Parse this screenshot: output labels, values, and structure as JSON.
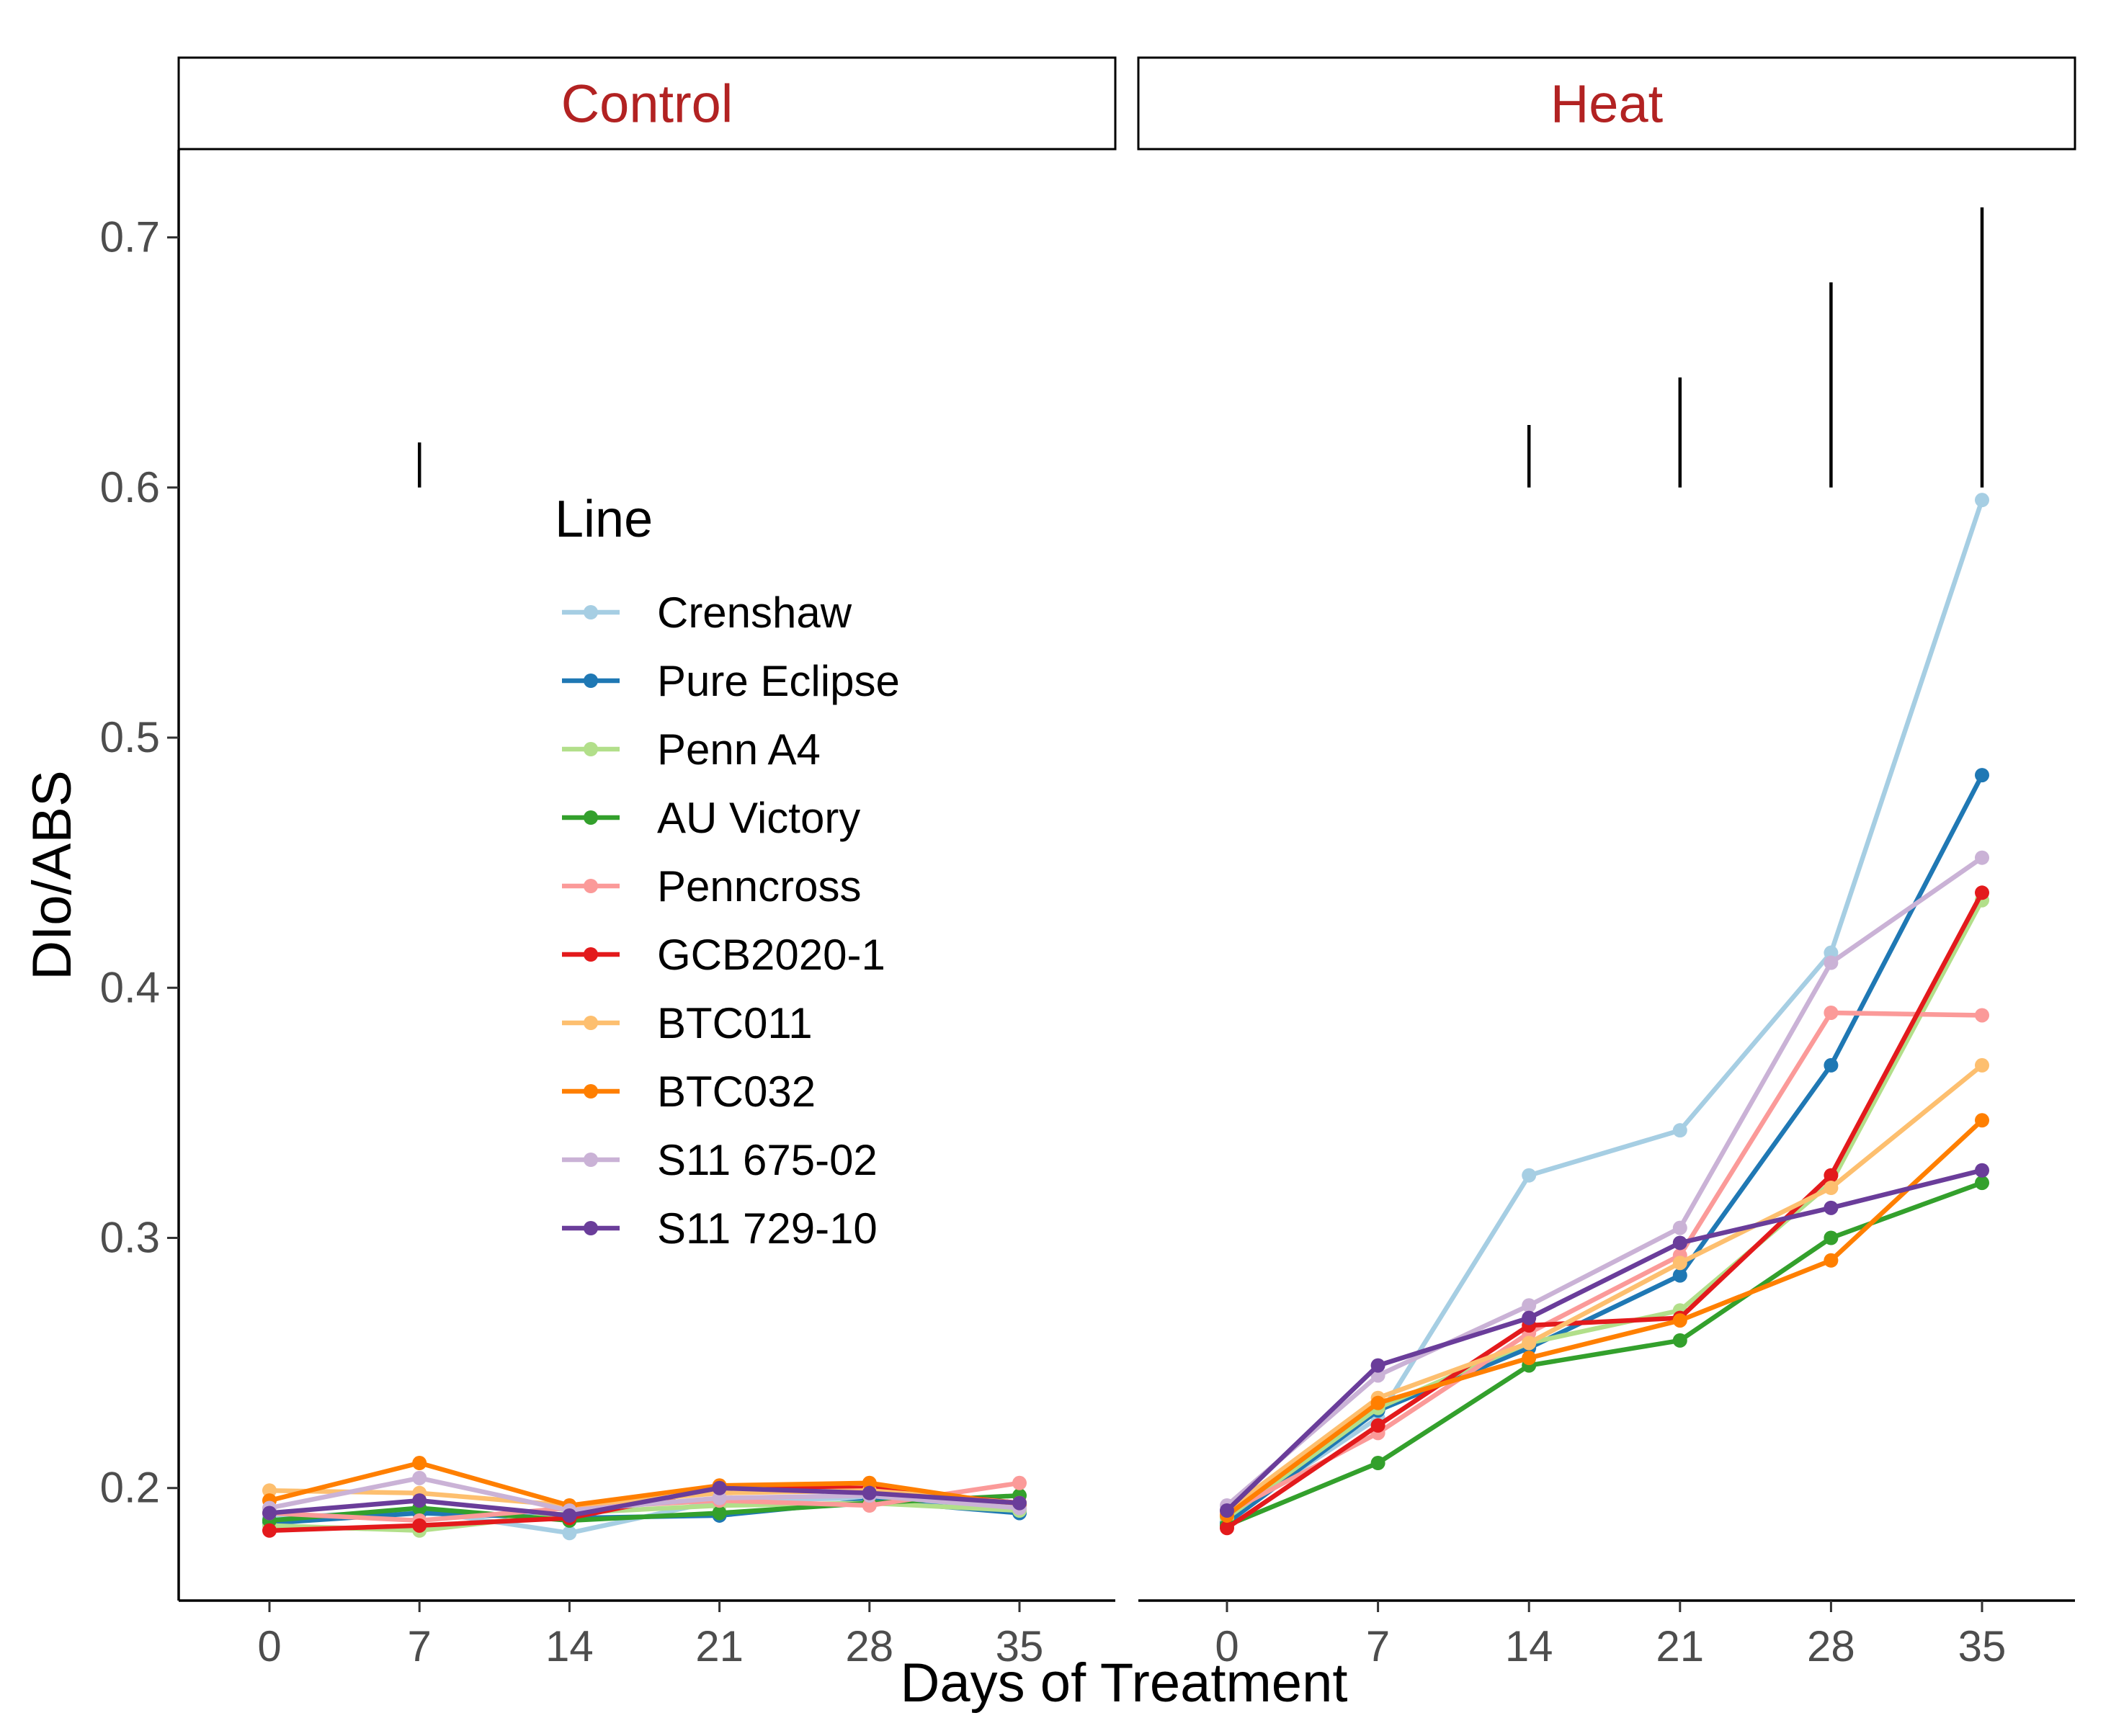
{
  "chart_data": {
    "type": "line",
    "ylabel": "DIo/ABS",
    "xlabel": "Days of Treatment",
    "x": [
      0,
      7,
      14,
      21,
      28,
      35
    ],
    "x_tick_labels": [
      "0",
      "7",
      "14",
      "21",
      "28",
      "35"
    ],
    "ylim": [
      0.155,
      0.735
    ],
    "y_ticks": [
      0.2,
      0.3,
      0.4,
      0.5,
      0.6,
      0.7
    ],
    "y_tick_labels": [
      "0.2",
      "0.3",
      "0.4",
      "0.5",
      "0.6",
      "0.7"
    ],
    "grid": false,
    "legend": {
      "title": "Line",
      "placement": "inside left panel, upper-middle"
    },
    "panel_label_color": "#b22222",
    "series_meta": [
      {
        "name": "Crenshaw",
        "color": "#a6cee3"
      },
      {
        "name": "Pure Eclipse",
        "color": "#1f78b4"
      },
      {
        "name": "Penn A4",
        "color": "#b2df8a"
      },
      {
        "name": "AU Victory",
        "color": "#33a02c"
      },
      {
        "name": "Penncross",
        "color": "#fb9a99"
      },
      {
        "name": "GCB2020-1",
        "color": "#e31a1c"
      },
      {
        "name": "BTC011",
        "color": "#fdbf6f"
      },
      {
        "name": "BTC032",
        "color": "#ff7f00"
      },
      {
        "name": "S11 675-02",
        "color": "#cab2d6"
      },
      {
        "name": "S11 729-10",
        "color": "#6a3d9a"
      }
    ],
    "panels": [
      {
        "label": "Control",
        "series": [
          {
            "name": "Crenshaw",
            "values": [
              0.188,
              0.191,
              0.182,
              0.195,
              0.196,
              0.19
            ]
          },
          {
            "name": "Pure Eclipse",
            "values": [
              0.186,
              0.19,
              0.188,
              0.189,
              0.195,
              0.19
            ]
          },
          {
            "name": "Penn A4",
            "values": [
              0.185,
              0.183,
              0.19,
              0.193,
              0.194,
              0.191
            ]
          },
          {
            "name": "AU Victory",
            "values": [
              0.187,
              0.192,
              0.187,
              0.19,
              0.194,
              0.197
            ]
          },
          {
            "name": "Penncross",
            "values": [
              0.19,
              0.187,
              0.192,
              0.195,
              0.193,
              0.202
            ]
          },
          {
            "name": "GCB2020-1",
            "values": [
              0.183,
              0.185,
              0.188,
              0.2,
              0.2,
              0.194
            ]
          },
          {
            "name": "BTC011",
            "values": [
              0.199,
              0.198,
              0.193,
              0.198,
              0.199,
              0.194
            ]
          },
          {
            "name": "BTC032",
            "values": [
              0.195,
              0.21,
              0.193,
              0.201,
              0.202,
              0.193
            ]
          },
          {
            "name": "S11 675-02",
            "values": [
              0.192,
              0.204,
              0.191,
              0.196,
              0.197,
              0.192
            ]
          },
          {
            "name": "S11 729-10",
            "values": [
              0.19,
              0.195,
              0.189,
              0.2,
              0.198,
              0.194
            ]
          }
        ],
        "significance_bars": [
          {
            "x": 7,
            "y_low": 0.6,
            "y_high": 0.618
          }
        ]
      },
      {
        "label": "Heat",
        "series": [
          {
            "name": "Crenshaw",
            "values": [
              0.188,
              0.228,
              0.325,
              0.343,
              0.414,
              0.595
            ]
          },
          {
            "name": "Pure Eclipse",
            "values": [
              0.186,
              0.231,
              0.256,
              0.285,
              0.369,
              0.485
            ]
          },
          {
            "name": "Penn A4",
            "values": [
              0.188,
              0.232,
              0.258,
              0.271,
              0.322,
              0.435
            ]
          },
          {
            "name": "AU Victory",
            "values": [
              0.185,
              0.21,
              0.249,
              0.259,
              0.3,
              0.322
            ]
          },
          {
            "name": "Penncross",
            "values": [
              0.19,
              0.222,
              0.262,
              0.293,
              0.39,
              0.389
            ]
          },
          {
            "name": "GCB2020-1",
            "values": [
              0.184,
              0.225,
              0.265,
              0.268,
              0.325,
              0.438
            ]
          },
          {
            "name": "BTC011",
            "values": [
              0.191,
              0.236,
              0.258,
              0.29,
              0.32,
              0.369
            ]
          },
          {
            "name": "BTC032",
            "values": [
              0.189,
              0.234,
              0.252,
              0.267,
              0.291,
              0.347
            ]
          },
          {
            "name": "S11 675-02",
            "values": [
              0.193,
              0.245,
              0.273,
              0.304,
              0.41,
              0.452
            ]
          },
          {
            "name": "S11 729-10",
            "values": [
              0.191,
              0.249,
              0.268,
              0.298,
              0.312,
              0.327
            ]
          }
        ],
        "significance_bars": [
          {
            "x": 14,
            "y_low": 0.6,
            "y_high": 0.625
          },
          {
            "x": 21,
            "y_low": 0.6,
            "y_high": 0.644
          },
          {
            "x": 28,
            "y_low": 0.6,
            "y_high": 0.682
          },
          {
            "x": 35,
            "y_low": 0.6,
            "y_high": 0.712
          }
        ]
      }
    ]
  }
}
